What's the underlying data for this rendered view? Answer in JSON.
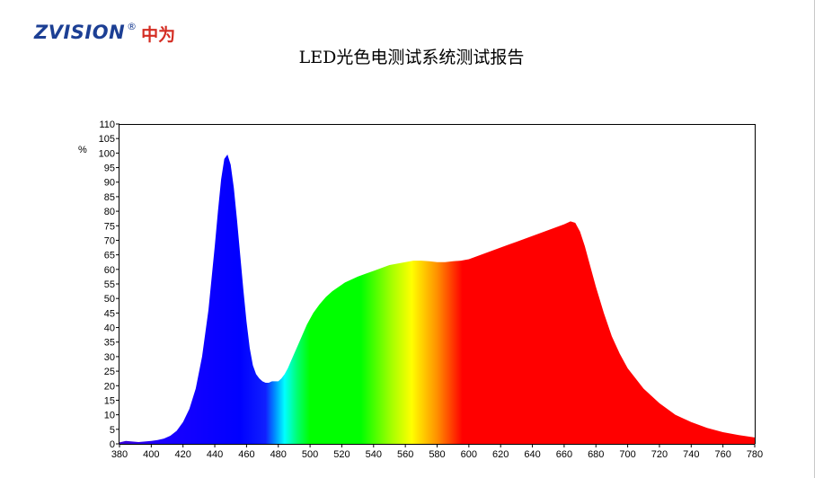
{
  "header": {
    "logo_text": "ZVISION",
    "logo_registered": "®",
    "logo_cn": "中为",
    "title": "LED光色电测试系统测试报告"
  },
  "colors": {
    "logo_blue": "#1c3f94",
    "logo_red": "#d42d23",
    "spectrum_violet": "#1010ff",
    "spectrum_cyan": "#00ffff",
    "spectrum_green": "#00ff00",
    "spectrum_yellow": "#ffff00",
    "spectrum_red": "#ff0000"
  },
  "chart_data": {
    "type": "area",
    "title": "",
    "xlabel": "",
    "ylabel": "%",
    "xlim": [
      380,
      780
    ],
    "ylim": [
      0,
      110
    ],
    "grid": false,
    "x_ticks": [
      380,
      400,
      420,
      440,
      460,
      480,
      500,
      520,
      540,
      560,
      580,
      600,
      620,
      640,
      660,
      680,
      700,
      720,
      740,
      760,
      780
    ],
    "y_ticks": [
      0,
      5,
      10,
      15,
      20,
      25,
      30,
      35,
      40,
      45,
      50,
      55,
      60,
      65,
      70,
      75,
      80,
      85,
      90,
      95,
      100,
      105,
      110
    ],
    "fill": "visible-spectrum gradient by wavelength",
    "series": [
      {
        "x": [
          380,
          384,
          388,
          392,
          396,
          400,
          404,
          408,
          412,
          416,
          420,
          424,
          428,
          432,
          436,
          440,
          442,
          444,
          446,
          448,
          450,
          452,
          454,
          456,
          458,
          460,
          462,
          464,
          466,
          468,
          470,
          472,
          474,
          476,
          478,
          480,
          482,
          484,
          486,
          488,
          490,
          494,
          498,
          502,
          506,
          510,
          514,
          518,
          522,
          526,
          530,
          535,
          540,
          545,
          550,
          555,
          560,
          565,
          570,
          575,
          580,
          585,
          590,
          595,
          600,
          605,
          610,
          615,
          620,
          625,
          630,
          635,
          640,
          645,
          650,
          655,
          660,
          664,
          667,
          670,
          673,
          676,
          680,
          685,
          690,
          695,
          700,
          710,
          720,
          730,
          740,
          750,
          760,
          770,
          780
        ],
        "values": [
          0.5,
          1.0,
          0.8,
          0.6,
          0.8,
          1.0,
          1.3,
          1.8,
          2.8,
          4.5,
          7.5,
          12,
          19,
          30,
          46,
          68,
          80,
          91,
          98,
          99.5,
          96,
          88,
          77,
          65,
          53,
          42,
          33,
          27,
          24,
          22.5,
          21.5,
          21,
          21,
          21.5,
          21.5,
          21.5,
          22.5,
          24,
          26,
          28.5,
          31,
          36,
          41,
          45,
          48,
          50.5,
          52.5,
          54,
          55.5,
          56.5,
          57.5,
          58.5,
          59.5,
          60.5,
          61.5,
          62,
          62.5,
          63,
          63,
          62.8,
          62.5,
          62.5,
          62.8,
          63,
          63.5,
          64.5,
          65.5,
          66.5,
          67.5,
          68.5,
          69.5,
          70.5,
          71.5,
          72.5,
          73.5,
          74.5,
          75.5,
          76.5,
          76,
          73,
          68,
          62,
          54,
          45,
          37,
          31,
          26,
          19,
          14,
          10,
          7.5,
          5.5,
          4,
          3,
          2.2
        ]
      }
    ]
  }
}
